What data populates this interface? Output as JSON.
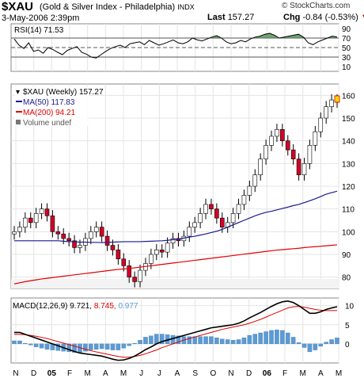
{
  "header": {
    "symbol": "$XAU",
    "name": "(Gold & Silver Index - Philadelphia)",
    "exchange": "INDX",
    "date": "3-May-2006 2:39pm",
    "last_label": "Last",
    "last_value": "157.27",
    "chg_label": "Chg",
    "chg_value": "-0.84 (-0.53%)",
    "watermark": "© StockCharts.com"
  },
  "colors": {
    "up": "#ffffff",
    "down": "#d40026",
    "ma50": "#1b1b8f",
    "ma200": "#e00000",
    "rsi_fill": "#4f8a4f",
    "macd_hist": "#5b9bd5",
    "macd_signal": "#e00000"
  },
  "chart_data": [
    {
      "type": "line",
      "name": "RSI",
      "label": "RSI(14) 71.53",
      "y_ticks": [
        90,
        70,
        50,
        30,
        10
      ],
      "ylim": [
        0,
        100
      ],
      "reference_lines": [
        70,
        50,
        30
      ],
      "values": [
        68,
        55,
        48,
        60,
        42,
        45,
        38,
        50,
        46,
        40,
        35,
        44,
        48,
        52,
        40,
        36,
        30,
        28,
        35,
        42,
        48,
        52,
        55,
        50,
        58,
        60,
        62,
        56,
        65,
        60,
        55,
        58,
        62,
        66,
        60,
        58,
        62,
        70,
        66,
        64,
        68,
        72,
        75,
        70,
        62,
        58,
        60,
        65,
        62,
        68,
        72,
        74,
        78,
        80,
        76,
        70,
        72,
        74,
        76,
        78,
        72,
        60,
        56,
        62,
        66,
        70,
        74,
        72
      ]
    },
    {
      "type": "candlestick",
      "name": "$XAU (Weekly)",
      "legend": [
        {
          "label": "$XAU (Weekly) 157.27"
        },
        {
          "label": "MA(50) 117.83"
        },
        {
          "label": "MA(200) 94.21"
        },
        {
          "label": "Volume undef"
        }
      ],
      "y_ticks": [
        160,
        150,
        140,
        130,
        120,
        110,
        100,
        90,
        80
      ],
      "ylim": [
        75,
        165
      ],
      "x_labels": [
        "N",
        "D",
        "05",
        "F",
        "M",
        "A",
        "M",
        "J",
        "J",
        "A",
        "S",
        "O",
        "N",
        "D",
        "06",
        "F",
        "M",
        "A",
        "M"
      ],
      "closes": [
        100,
        102,
        106,
        104,
        108,
        110,
        107,
        100,
        99,
        97,
        96,
        93,
        94,
        97,
        100,
        102,
        98,
        94,
        92,
        88,
        85,
        80,
        78,
        83,
        86,
        90,
        92,
        91,
        95,
        97,
        96,
        98,
        102,
        104,
        108,
        112,
        110,
        106,
        102,
        104,
        108,
        112,
        116,
        120,
        125,
        132,
        138,
        142,
        145,
        140,
        136,
        132,
        125,
        130,
        138,
        144,
        150,
        155,
        158,
        157
      ],
      "ma50": [
        96,
        96,
        96,
        96,
        96,
        96,
        96,
        96,
        96,
        95.8,
        95.6,
        95.6,
        95.4,
        95.4,
        95.3,
        95.3,
        95.2,
        95.3,
        95.4,
        95.5,
        95.6,
        95.6,
        95.6,
        95.6,
        95.7,
        95.8,
        95.9,
        96,
        96.2,
        96.5,
        96.8,
        97.2,
        97.6,
        98,
        98.5,
        99,
        99.6,
        100.2,
        101,
        102,
        103,
        104,
        105,
        106,
        107,
        107.8,
        108.5,
        109,
        109.6,
        110.2,
        110.8,
        111.5,
        112,
        112.8,
        113.6,
        114.5,
        115.5,
        116.5,
        117.2,
        117.8
      ],
      "ma200": [
        77,
        77.5,
        78,
        78.4,
        78.8,
        79.2,
        79.5,
        79.8,
        80.1,
        80.4,
        80.7,
        81,
        81.3,
        81.6,
        81.9,
        82.2,
        82.5,
        82.8,
        83.1,
        83.4,
        83.6,
        83.8,
        84.1,
        84.4,
        84.7,
        85,
        85.3,
        85.6,
        85.9,
        86.2,
        86.5,
        86.8,
        87.1,
        87.4,
        87.7,
        88,
        88.3,
        88.6,
        88.9,
        89.2,
        89.5,
        89.8,
        90.1,
        90.4,
        90.7,
        91,
        91.3,
        91.6,
        91.9,
        92.1,
        92.3,
        92.5,
        92.7,
        93,
        93.2,
        93.4,
        93.6,
        93.8,
        94,
        94.21
      ]
    },
    {
      "type": "line",
      "name": "MACD",
      "label_prefix": "MACD(12,26,9)",
      "macd_value": "9.721",
      "signal_value": "8.745",
      "hist_value": "0.977",
      "y_ticks": [
        10,
        5,
        0
      ],
      "ylim": [
        -5,
        12
      ],
      "macd": [
        3,
        3,
        2.5,
        2,
        1.5,
        1,
        0.5,
        0,
        -0.5,
        -1,
        -1.5,
        -2,
        -2.4,
        -2.6,
        -2.8,
        -3,
        -3.2,
        -3.6,
        -4,
        -4.3,
        -4.2,
        -3.8,
        -3.2,
        -2.4,
        -1.5,
        -0.8,
        0,
        0.6,
        1,
        1.4,
        1.8,
        2.2,
        2.6,
        3,
        3.4,
        3.8,
        4.2,
        4.4,
        4.6,
        4.8,
        5,
        5.4,
        6,
        6.8,
        7.5,
        8.2,
        9,
        9.8,
        10.5,
        11,
        11.2,
        10.8,
        10,
        9,
        8,
        8,
        8.4,
        9,
        9.4,
        9.721
      ],
      "signal": [
        2.5,
        2.5,
        2.4,
        2.2,
        2,
        1.7,
        1.4,
        1,
        0.6,
        0.2,
        -0.2,
        -0.6,
        -1,
        -1.4,
        -1.8,
        -2.1,
        -2.4,
        -2.7,
        -3,
        -3.3,
        -3.5,
        -3.5,
        -3.3,
        -3,
        -2.6,
        -2.1,
        -1.6,
        -1,
        -0.5,
        0,
        0.5,
        1,
        1.4,
        1.8,
        2.2,
        2.6,
        3,
        3.4,
        3.8,
        4.1,
        4.4,
        4.7,
        5,
        5.4,
        5.9,
        6.4,
        7,
        7.6,
        8.2,
        8.8,
        9.4,
        9.7,
        9.8,
        9.6,
        9.3,
        9,
        8.8,
        8.7,
        8.7,
        8.745
      ]
    }
  ]
}
